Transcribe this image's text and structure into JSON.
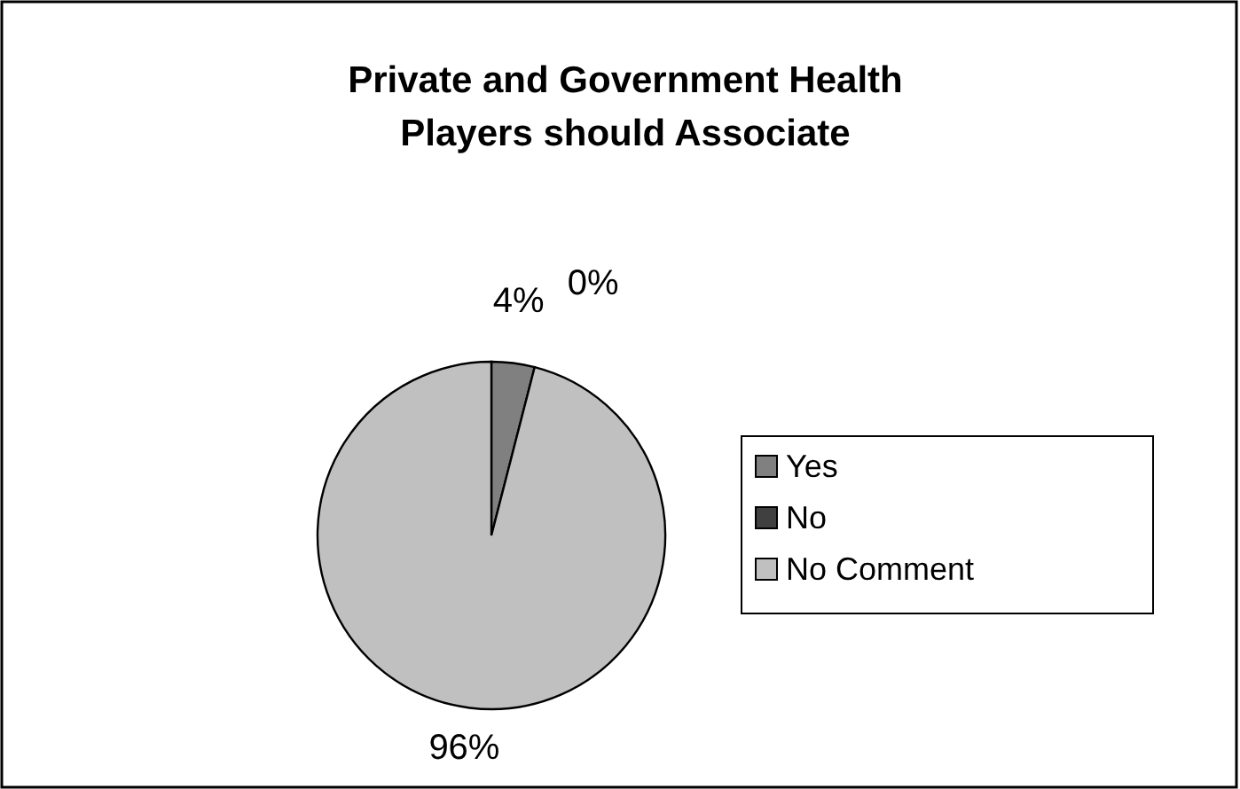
{
  "chart_data": {
    "type": "pie",
    "title": "Private and Government Health Players should Associate",
    "categories": [
      "Yes",
      "No",
      "No Comment"
    ],
    "values": [
      4,
      0,
      96
    ],
    "colors": [
      "#808080",
      "#404040",
      "#c0c0c0"
    ],
    "value_labels": [
      "4%",
      "0%",
      "96%"
    ],
    "legend": "right"
  }
}
